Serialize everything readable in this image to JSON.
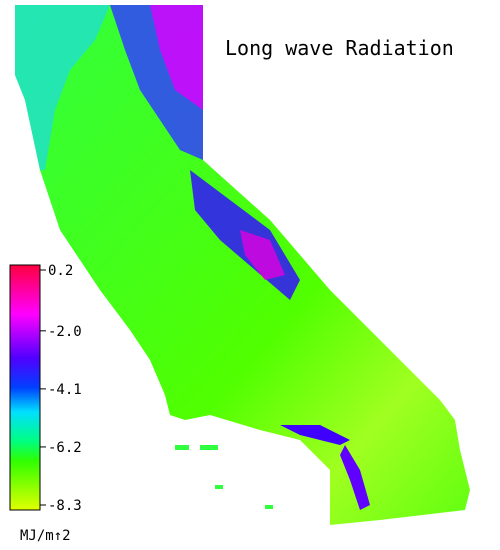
{
  "title": "Long wave Radiation",
  "legend": {
    "ticks": [
      0.2,
      {
        "value": -2,
        "label": "-2.0"
      },
      -4.1,
      -6.2,
      -8.3
    ],
    "unit": "MJ/m↑2"
  }
}
